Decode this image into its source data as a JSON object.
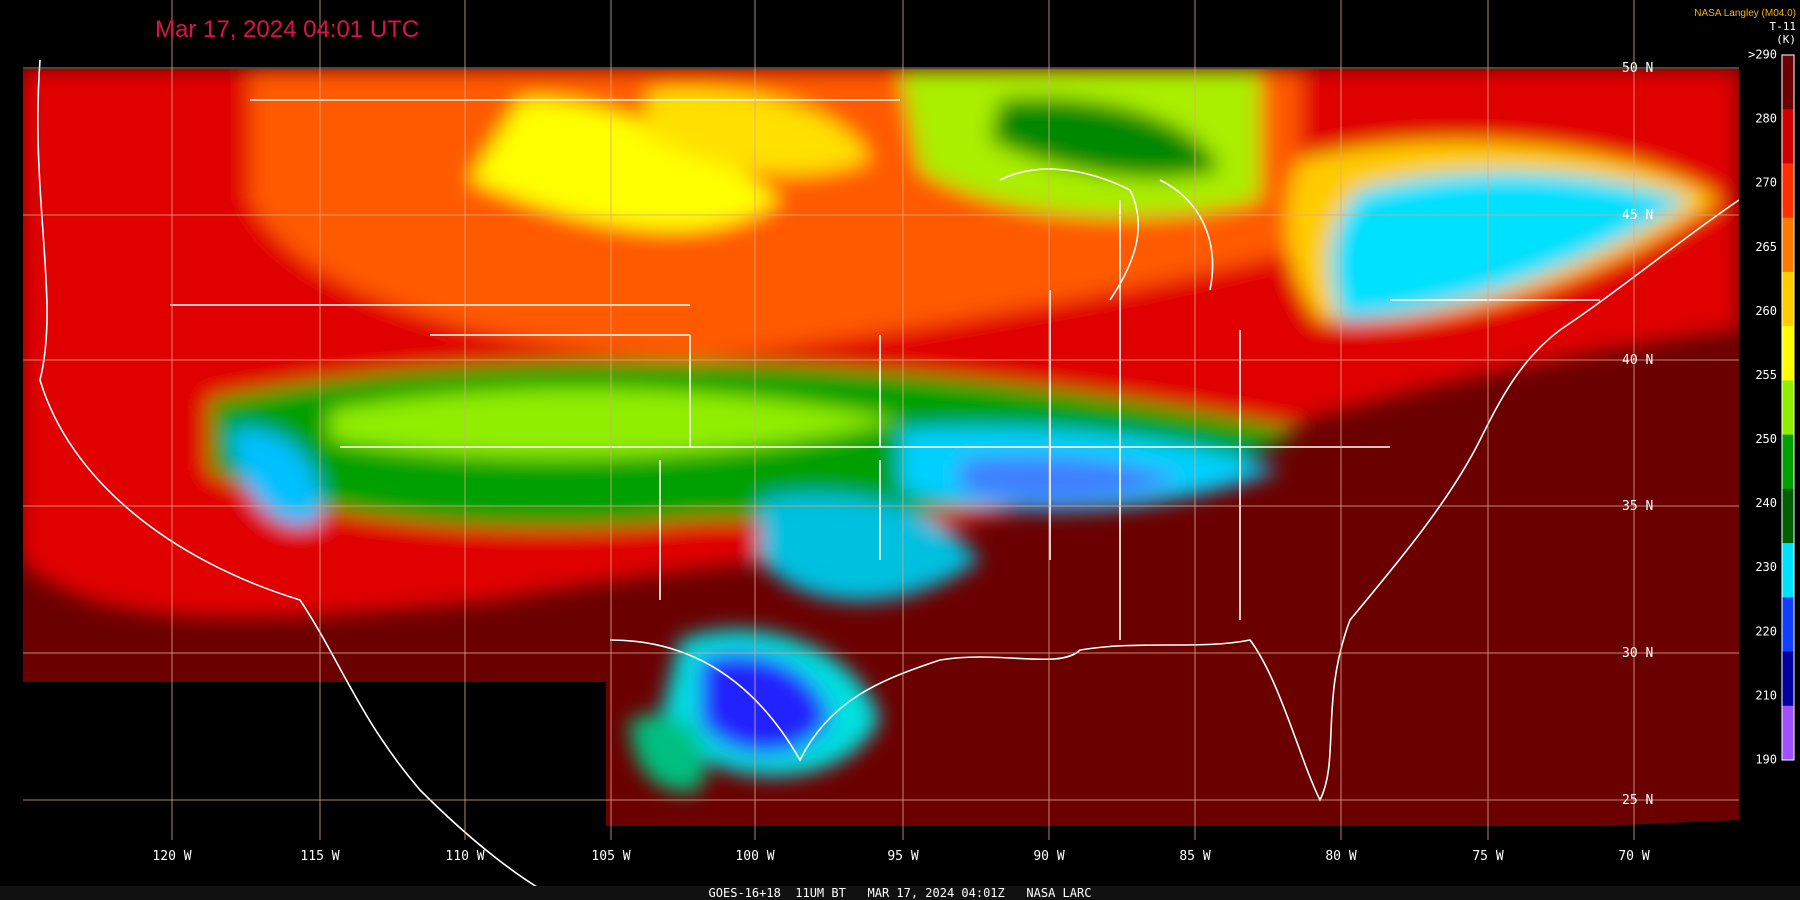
{
  "header": {
    "timestamp": "Mar 17, 2024 04:01 UTC",
    "producer": "NASA Langley (M04.0)",
    "channel": "T-11",
    "unit": "(K)"
  },
  "latitudes": [
    "50 N",
    "45 N",
    "40 N",
    "35 N",
    "30 N",
    "25 N"
  ],
  "longitudes": [
    "120 W",
    "115 W",
    "110 W",
    "105 W",
    "100 W",
    "95 W",
    "90 W",
    "85 W",
    "80 W",
    "75 W",
    "70 W"
  ],
  "colorbar": [
    ">290",
    "280",
    "270",
    "265",
    "260",
    "255",
    "250",
    "240",
    "230",
    "220",
    "210",
    "190"
  ],
  "footer": "GOES-16+18  11UM BT   MAR 17, 2024 04:01Z   NASA LARC"
}
